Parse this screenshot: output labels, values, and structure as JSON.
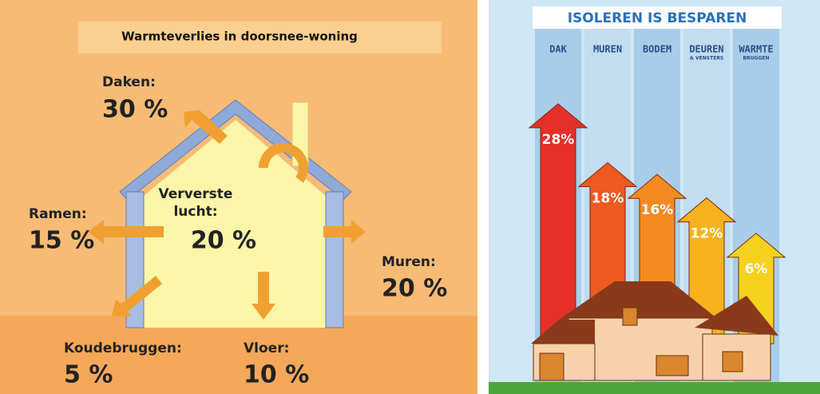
{
  "left": {
    "title": "Warmteverlies in doorsnee-woning",
    "items": [
      {
        "label": "Daken:",
        "value": 30,
        "value_label": "30 %"
      },
      {
        "label": "Ramen:",
        "value": 15,
        "value_label": "15 %"
      },
      {
        "label": "Ververste lucht:",
        "value": 20,
        "value_label": "20 %"
      },
      {
        "label": "Muren:",
        "value": 20,
        "value_label": "20 %"
      },
      {
        "label": "Koudebruggen:",
        "value": 5,
        "value_label": "5 %"
      },
      {
        "label": "Vloer:",
        "value": 10,
        "value_label": "10 %"
      }
    ]
  },
  "right": {
    "title": "ISOLEREN IS BESPAREN",
    "columns": [
      {
        "label": "DAK",
        "value": 28,
        "value_label": "28%",
        "color": "#e5302a"
      },
      {
        "label": "MUREN",
        "value": 18,
        "value_label": "18%",
        "color": "#ee5a20"
      },
      {
        "label": "BODEM",
        "value": 16,
        "value_label": "16%",
        "color": "#f58a20"
      },
      {
        "label": "DEUREN",
        "sublabel": "& VENSTERS",
        "value": 12,
        "value_label": "12%",
        "color": "#f7b21e"
      },
      {
        "label": "WARMTE",
        "sublabel": "BRUGGEN",
        "value": 6,
        "value_label": "6%",
        "color": "#f5d21e"
      }
    ]
  }
}
